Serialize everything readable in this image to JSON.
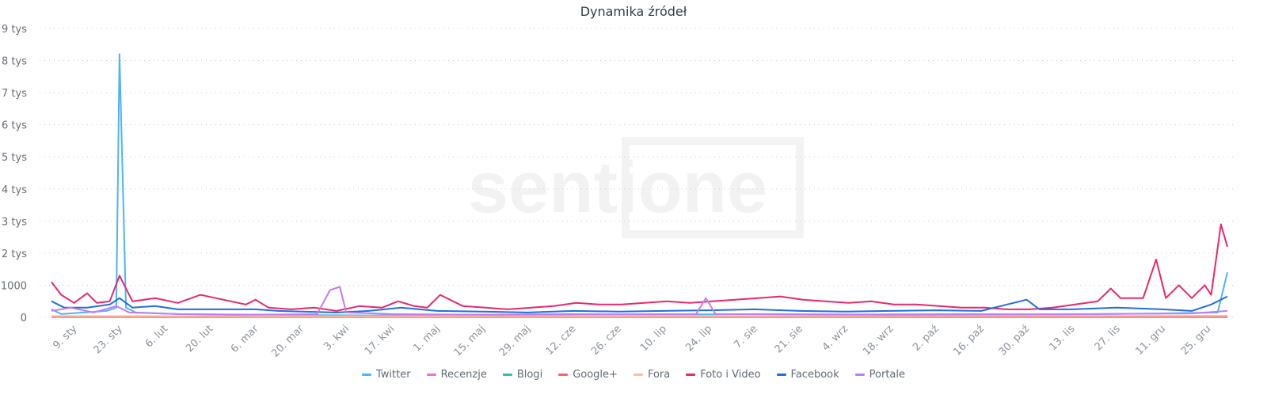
{
  "chart_data": {
    "type": "line",
    "title": "Dynamika źródeł",
    "watermark": "sentione",
    "x_range": [
      "01-02",
      "12-31"
    ],
    "ylim": [
      0,
      9000
    ],
    "grid": true,
    "legend_placement": "bottom",
    "y_ticks": [
      {
        "v": 0,
        "label": "0"
      },
      {
        "v": 1000,
        "label": "1000"
      },
      {
        "v": 2000,
        "label": "2 tys"
      },
      {
        "v": 3000,
        "label": "3 tys"
      },
      {
        "v": 4000,
        "label": "4 tys"
      },
      {
        "v": 5000,
        "label": "5 tys"
      },
      {
        "v": 6000,
        "label": "6 tys"
      },
      {
        "v": 7000,
        "label": "7 tys"
      },
      {
        "v": 8000,
        "label": "8 tys"
      },
      {
        "v": 9000,
        "label": "9 tys"
      }
    ],
    "x_ticks": [
      {
        "d": "01-09",
        "label": "9. sty"
      },
      {
        "d": "01-23",
        "label": "23. sty"
      },
      {
        "d": "02-06",
        "label": "6. lut"
      },
      {
        "d": "02-20",
        "label": "20. lut"
      },
      {
        "d": "03-06",
        "label": "6. mar"
      },
      {
        "d": "03-20",
        "label": "20. mar"
      },
      {
        "d": "04-03",
        "label": "3. kwi"
      },
      {
        "d": "04-17",
        "label": "17. kwi"
      },
      {
        "d": "05-01",
        "label": "1. maj"
      },
      {
        "d": "05-15",
        "label": "15. maj"
      },
      {
        "d": "05-29",
        "label": "29. maj"
      },
      {
        "d": "06-12",
        "label": "12. cze"
      },
      {
        "d": "06-26",
        "label": "26. cze"
      },
      {
        "d": "07-10",
        "label": "10. lip"
      },
      {
        "d": "07-24",
        "label": "24. lip"
      },
      {
        "d": "08-07",
        "label": "7. sie"
      },
      {
        "d": "08-21",
        "label": "21. sie"
      },
      {
        "d": "09-04",
        "label": "4. wrz"
      },
      {
        "d": "09-18",
        "label": "18. wrz"
      },
      {
        "d": "10-02",
        "label": "2. paź"
      },
      {
        "d": "10-16",
        "label": "16. paź"
      },
      {
        "d": "10-30",
        "label": "30. paź"
      },
      {
        "d": "11-13",
        "label": "13. lis"
      },
      {
        "d": "11-27",
        "label": "27. lis"
      },
      {
        "d": "12-11",
        "label": "11. gru"
      },
      {
        "d": "12-25",
        "label": "25. gru"
      }
    ],
    "series": [
      {
        "name": "Twitter",
        "color": "#4fb3f6",
        "points": [
          [
            "01-02",
            250
          ],
          [
            "01-05",
            100
          ],
          [
            "01-12",
            150
          ],
          [
            "01-19",
            200
          ],
          [
            "01-22",
            300
          ],
          [
            "01-23",
            8200
          ],
          [
            "01-25",
            300
          ],
          [
            "01-28",
            150
          ],
          [
            "02-10",
            100
          ],
          [
            "03-10",
            80
          ],
          [
            "04-10",
            60
          ],
          [
            "05-10",
            80
          ],
          [
            "06-10",
            100
          ],
          [
            "07-10",
            90
          ],
          [
            "08-10",
            100
          ],
          [
            "09-10",
            90
          ],
          [
            "10-10",
            100
          ],
          [
            "11-10",
            90
          ],
          [
            "12-10",
            120
          ],
          [
            "12-28",
            150
          ],
          [
            "12-31",
            1400
          ]
        ]
      },
      {
        "name": "Recenzje",
        "color": "#f06ddb",
        "points": [
          [
            "01-02",
            30
          ],
          [
            "03-01",
            25
          ],
          [
            "06-01",
            30
          ],
          [
            "09-01",
            25
          ],
          [
            "12-31",
            40
          ]
        ]
      },
      {
        "name": "Blogi",
        "color": "#26c6b0",
        "points": [
          [
            "01-02",
            20
          ],
          [
            "04-01",
            25
          ],
          [
            "07-01",
            20
          ],
          [
            "10-01",
            25
          ],
          [
            "12-31",
            30
          ]
        ]
      },
      {
        "name": "Google+",
        "color": "#f2637a",
        "points": [
          [
            "01-02",
            10
          ],
          [
            "06-01",
            10
          ],
          [
            "12-31",
            10
          ]
        ]
      },
      {
        "name": "Fora",
        "color": "#ffbf9b",
        "points": [
          [
            "01-02",
            40
          ],
          [
            "04-01",
            35
          ],
          [
            "08-01",
            40
          ],
          [
            "12-31",
            50
          ]
        ]
      },
      {
        "name": "Foto i Video",
        "color": "#e8286f",
        "points": [
          [
            "01-02",
            1100
          ],
          [
            "01-05",
            700
          ],
          [
            "01-09",
            450
          ],
          [
            "01-13",
            750
          ],
          [
            "01-16",
            450
          ],
          [
            "01-20",
            500
          ],
          [
            "01-23",
            1300
          ],
          [
            "01-27",
            500
          ],
          [
            "02-03",
            600
          ],
          [
            "02-10",
            450
          ],
          [
            "02-17",
            700
          ],
          [
            "02-24",
            550
          ],
          [
            "03-03",
            400
          ],
          [
            "03-06",
            550
          ],
          [
            "03-10",
            300
          ],
          [
            "03-17",
            250
          ],
          [
            "03-24",
            300
          ],
          [
            "03-31",
            200
          ],
          [
            "04-07",
            350
          ],
          [
            "04-14",
            300
          ],
          [
            "04-19",
            500
          ],
          [
            "04-24",
            350
          ],
          [
            "04-28",
            300
          ],
          [
            "05-02",
            700
          ],
          [
            "05-09",
            350
          ],
          [
            "05-16",
            300
          ],
          [
            "05-23",
            250
          ],
          [
            "05-30",
            300
          ],
          [
            "06-06",
            350
          ],
          [
            "06-13",
            450
          ],
          [
            "06-20",
            400
          ],
          [
            "06-27",
            400
          ],
          [
            "07-04",
            450
          ],
          [
            "07-11",
            500
          ],
          [
            "07-18",
            450
          ],
          [
            "07-25",
            500
          ],
          [
            "08-01",
            550
          ],
          [
            "08-08",
            600
          ],
          [
            "08-15",
            650
          ],
          [
            "08-22",
            550
          ],
          [
            "08-29",
            500
          ],
          [
            "09-05",
            450
          ],
          [
            "09-12",
            500
          ],
          [
            "09-19",
            400
          ],
          [
            "09-26",
            400
          ],
          [
            "10-03",
            350
          ],
          [
            "10-10",
            300
          ],
          [
            "10-17",
            300
          ],
          [
            "10-24",
            250
          ],
          [
            "10-31",
            250
          ],
          [
            "11-07",
            300
          ],
          [
            "11-14",
            400
          ],
          [
            "11-21",
            500
          ],
          [
            "11-25",
            900
          ],
          [
            "11-28",
            600
          ],
          [
            "12-05",
            600
          ],
          [
            "12-09",
            1800
          ],
          [
            "12-12",
            600
          ],
          [
            "12-16",
            1000
          ],
          [
            "12-20",
            600
          ],
          [
            "12-24",
            1000
          ],
          [
            "12-26",
            700
          ],
          [
            "12-29",
            2900
          ],
          [
            "12-31",
            2200
          ]
        ]
      },
      {
        "name": "Facebook",
        "color": "#1f6fdc",
        "points": [
          [
            "01-02",
            500
          ],
          [
            "01-06",
            300
          ],
          [
            "01-13",
            300
          ],
          [
            "01-20",
            400
          ],
          [
            "01-23",
            600
          ],
          [
            "01-27",
            300
          ],
          [
            "02-03",
            350
          ],
          [
            "02-10",
            250
          ],
          [
            "02-20",
            250
          ],
          [
            "03-06",
            250
          ],
          [
            "03-13",
            200
          ],
          [
            "03-20",
            180
          ],
          [
            "03-31",
            150
          ],
          [
            "04-10",
            200
          ],
          [
            "04-20",
            300
          ],
          [
            "05-01",
            200
          ],
          [
            "05-15",
            180
          ],
          [
            "05-29",
            150
          ],
          [
            "06-12",
            200
          ],
          [
            "06-26",
            180
          ],
          [
            "07-10",
            200
          ],
          [
            "07-24",
            220
          ],
          [
            "08-07",
            250
          ],
          [
            "08-21",
            200
          ],
          [
            "09-04",
            180
          ],
          [
            "09-18",
            200
          ],
          [
            "10-02",
            220
          ],
          [
            "10-16",
            200
          ],
          [
            "10-30",
            550
          ],
          [
            "11-03",
            250
          ],
          [
            "11-13",
            250
          ],
          [
            "11-27",
            300
          ],
          [
            "12-11",
            250
          ],
          [
            "12-20",
            200
          ],
          [
            "12-26",
            400
          ],
          [
            "12-31",
            650
          ]
        ]
      },
      {
        "name": "Portale",
        "color": "#c07cf2",
        "points": [
          [
            "01-02",
            200
          ],
          [
            "01-08",
            300
          ],
          [
            "01-15",
            150
          ],
          [
            "01-22",
            350
          ],
          [
            "01-26",
            150
          ],
          [
            "02-10",
            100
          ],
          [
            "03-01",
            80
          ],
          [
            "03-25",
            100
          ],
          [
            "03-29",
            850
          ],
          [
            "04-01",
            950
          ],
          [
            "04-03",
            150
          ],
          [
            "04-17",
            100
          ],
          [
            "05-15",
            80
          ],
          [
            "06-15",
            90
          ],
          [
            "07-20",
            100
          ],
          [
            "07-23",
            600
          ],
          [
            "07-26",
            100
          ],
          [
            "08-20",
            90
          ],
          [
            "09-20",
            80
          ],
          [
            "10-20",
            90
          ],
          [
            "11-20",
            100
          ],
          [
            "12-20",
            120
          ],
          [
            "12-31",
            200
          ]
        ]
      }
    ]
  }
}
